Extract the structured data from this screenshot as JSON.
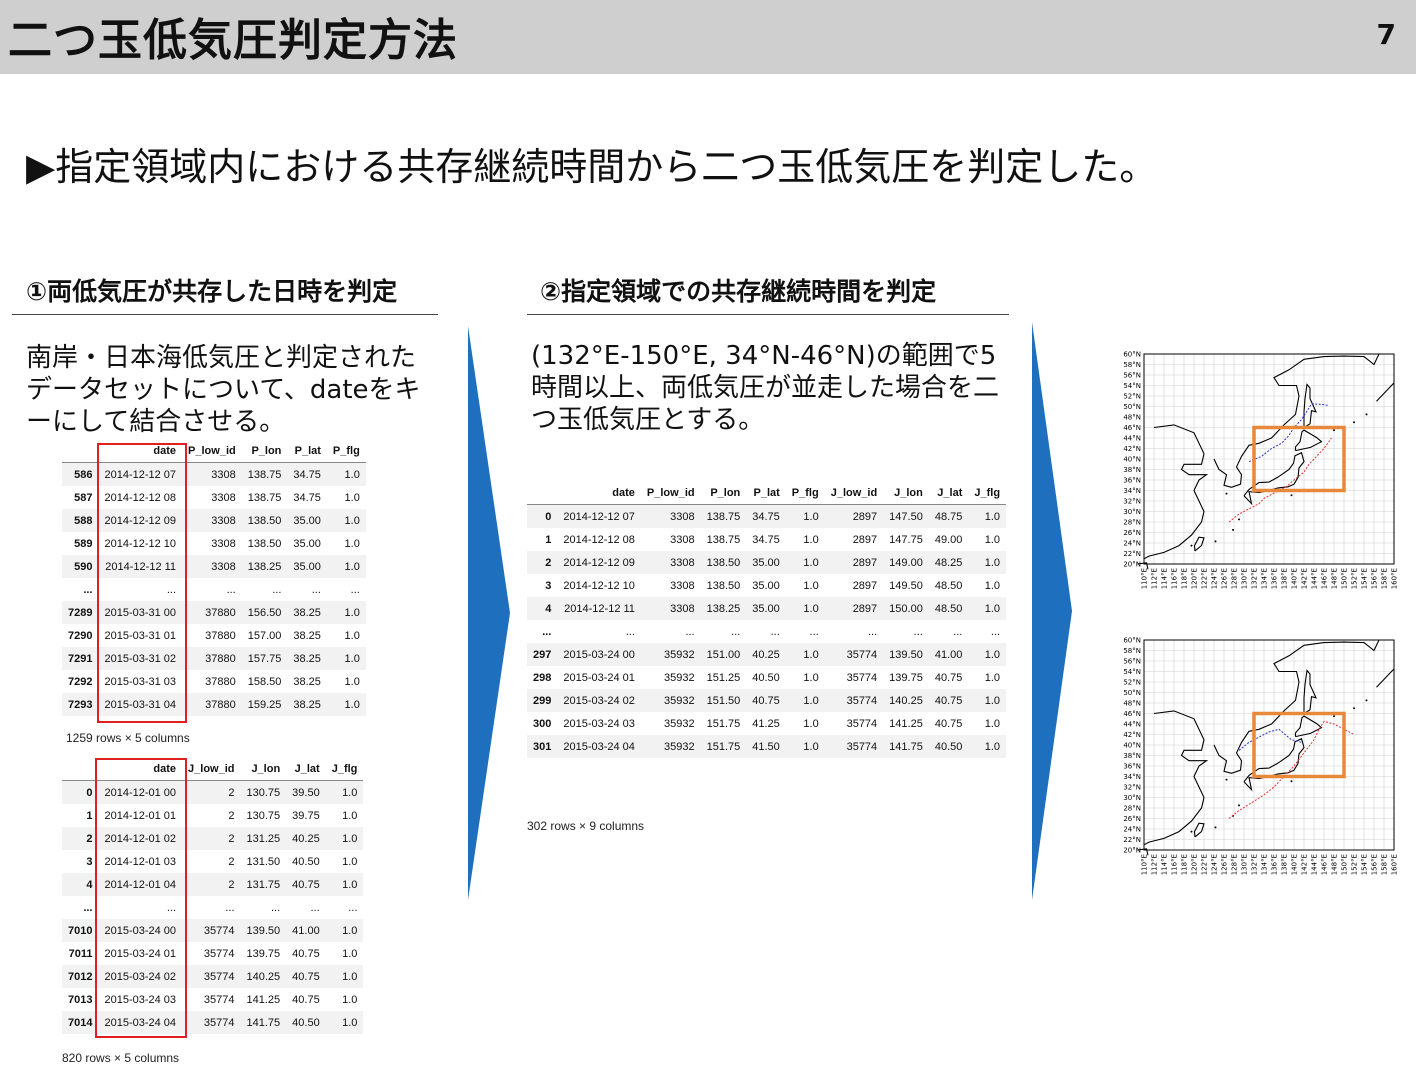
{
  "slide": {
    "title": "二つ玉低気圧判定方法",
    "page": "7"
  },
  "lead": "▶指定領域内における共存継続時間から二つ玉低気圧を判定した。",
  "section1": {
    "heading": "①両低気圧が共存した日時を判定",
    "description": "南岸・日本海低気圧と判定されたデータセットについて、dateをキーにして結合させる。"
  },
  "section2": {
    "heading": "②指定領域での共存継続時間を判定",
    "description": "(132°E-150°E, 34°N-46°N)の範囲で5時間以上、両低気圧が並走した場合を二つ玉低気圧とする。"
  },
  "table_p": {
    "columns": [
      "",
      "date",
      "P_low_id",
      "P_lon",
      "P_lat",
      "P_flg"
    ],
    "rows": [
      [
        "586",
        "2014-12-12 07",
        "3308",
        "138.75",
        "34.75",
        "1.0"
      ],
      [
        "587",
        "2014-12-12 08",
        "3308",
        "138.75",
        "34.75",
        "1.0"
      ],
      [
        "588",
        "2014-12-12 09",
        "3308",
        "138.50",
        "35.00",
        "1.0"
      ],
      [
        "589",
        "2014-12-12 10",
        "3308",
        "138.50",
        "35.00",
        "1.0"
      ],
      [
        "590",
        "2014-12-12 11",
        "3308",
        "138.25",
        "35.00",
        "1.0"
      ],
      [
        "...",
        "...",
        "...",
        "...",
        "...",
        "..."
      ],
      [
        "7289",
        "2015-03-31 00",
        "37880",
        "156.50",
        "38.25",
        "1.0"
      ],
      [
        "7290",
        "2015-03-31 01",
        "37880",
        "157.00",
        "38.25",
        "1.0"
      ],
      [
        "7291",
        "2015-03-31 02",
        "37880",
        "157.75",
        "38.25",
        "1.0"
      ],
      [
        "7292",
        "2015-03-31 03",
        "37880",
        "158.50",
        "38.25",
        "1.0"
      ],
      [
        "7293",
        "2015-03-31 04",
        "37880",
        "159.25",
        "38.25",
        "1.0"
      ]
    ],
    "shape": "1259 rows × 5 columns"
  },
  "table_j": {
    "columns": [
      "",
      "date",
      "J_low_id",
      "J_lon",
      "J_lat",
      "J_flg"
    ],
    "rows": [
      [
        "0",
        "2014-12-01 00",
        "2",
        "130.75",
        "39.50",
        "1.0"
      ],
      [
        "1",
        "2014-12-01 01",
        "2",
        "130.75",
        "39.75",
        "1.0"
      ],
      [
        "2",
        "2014-12-01 02",
        "2",
        "131.25",
        "40.25",
        "1.0"
      ],
      [
        "3",
        "2014-12-01 03",
        "2",
        "131.50",
        "40.50",
        "1.0"
      ],
      [
        "4",
        "2014-12-01 04",
        "2",
        "131.75",
        "40.75",
        "1.0"
      ],
      [
        "...",
        "...",
        "...",
        "...",
        "...",
        "..."
      ],
      [
        "7010",
        "2015-03-24 00",
        "35774",
        "139.50",
        "41.00",
        "1.0"
      ],
      [
        "7011",
        "2015-03-24 01",
        "35774",
        "139.75",
        "40.75",
        "1.0"
      ],
      [
        "7012",
        "2015-03-24 02",
        "35774",
        "140.25",
        "40.75",
        "1.0"
      ],
      [
        "7013",
        "2015-03-24 03",
        "35774",
        "141.25",
        "40.75",
        "1.0"
      ],
      [
        "7014",
        "2015-03-24 04",
        "35774",
        "141.75",
        "40.50",
        "1.0"
      ]
    ],
    "shape": "820 rows × 5 columns"
  },
  "table_merged": {
    "columns": [
      "",
      "date",
      "P_low_id",
      "P_lon",
      "P_lat",
      "P_flg",
      "J_low_id",
      "J_lon",
      "J_lat",
      "J_flg"
    ],
    "rows": [
      [
        "0",
        "2014-12-12 07",
        "3308",
        "138.75",
        "34.75",
        "1.0",
        "2897",
        "147.50",
        "48.75",
        "1.0"
      ],
      [
        "1",
        "2014-12-12 08",
        "3308",
        "138.75",
        "34.75",
        "1.0",
        "2897",
        "147.75",
        "49.00",
        "1.0"
      ],
      [
        "2",
        "2014-12-12 09",
        "3308",
        "138.50",
        "35.00",
        "1.0",
        "2897",
        "149.00",
        "48.25",
        "1.0"
      ],
      [
        "3",
        "2014-12-12 10",
        "3308",
        "138.50",
        "35.00",
        "1.0",
        "2897",
        "149.50",
        "48.50",
        "1.0"
      ],
      [
        "4",
        "2014-12-12 11",
        "3308",
        "138.25",
        "35.00",
        "1.0",
        "2897",
        "150.00",
        "48.50",
        "1.0"
      ],
      [
        "...",
        "...",
        "...",
        "...",
        "...",
        "...",
        "...",
        "...",
        "...",
        "..."
      ],
      [
        "297",
        "2015-03-24 00",
        "35932",
        "151.00",
        "40.25",
        "1.0",
        "35774",
        "139.50",
        "41.00",
        "1.0"
      ],
      [
        "298",
        "2015-03-24 01",
        "35932",
        "151.25",
        "40.50",
        "1.0",
        "35774",
        "139.75",
        "40.75",
        "1.0"
      ],
      [
        "299",
        "2015-03-24 02",
        "35932",
        "151.50",
        "40.75",
        "1.0",
        "35774",
        "140.25",
        "40.75",
        "1.0"
      ],
      [
        "300",
        "2015-03-24 03",
        "35932",
        "151.75",
        "41.25",
        "1.0",
        "35774",
        "141.25",
        "40.75",
        "1.0"
      ],
      [
        "301",
        "2015-03-24 04",
        "35932",
        "151.75",
        "41.50",
        "1.0",
        "35774",
        "141.75",
        "40.50",
        "1.0"
      ]
    ],
    "shape": "302 rows × 9 columns"
  },
  "maps": {
    "lat_labels": [
      "60°N",
      "58°N",
      "56°N",
      "54°N",
      "52°N",
      "50°N",
      "48°N",
      "46°N",
      "44°N",
      "42°N",
      "40°N",
      "38°N",
      "36°N",
      "34°N",
      "32°N",
      "30°N",
      "28°N",
      "26°N",
      "24°N",
      "22°N",
      "20°N"
    ],
    "lon_labels": [
      "110°E",
      "112°E",
      "114°E",
      "116°E",
      "118°E",
      "120°E",
      "122°E",
      "124°E",
      "126°E",
      "128°E",
      "130°E",
      "132°E",
      "134°E",
      "136°E",
      "138°E",
      "140°E",
      "142°E",
      "144°E",
      "146°E",
      "148°E",
      "150°E",
      "152°E",
      "154°E",
      "156°E",
      "158°E",
      "160°E"
    ],
    "region_box": {
      "lon": [
        132,
        150
      ],
      "lat": [
        34,
        46
      ]
    },
    "colors": {
      "south_track": "#e83030",
      "sea_track": "#2233cc",
      "box": "#e8883a"
    }
  }
}
